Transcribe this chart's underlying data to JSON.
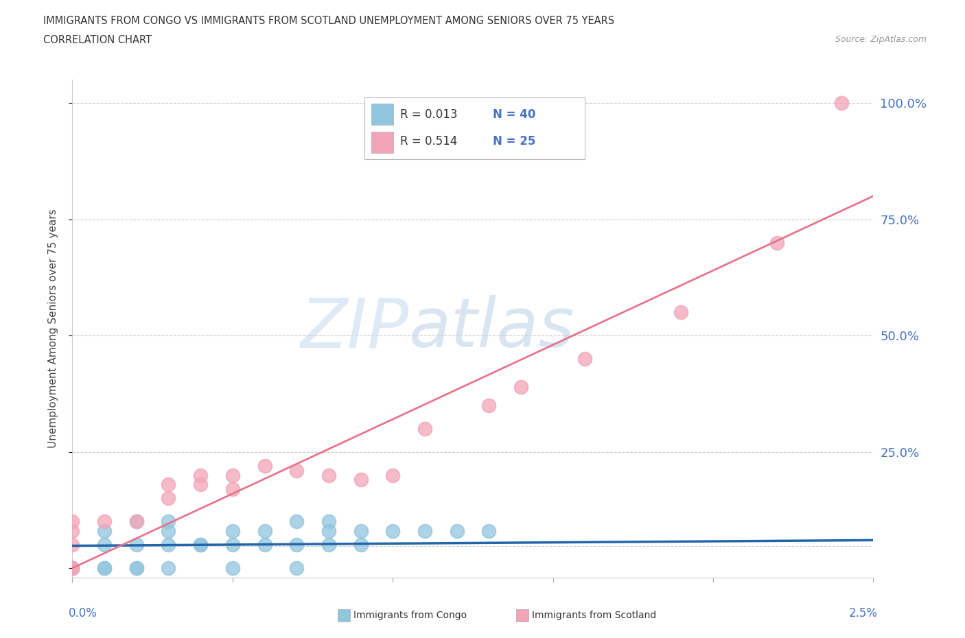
{
  "title_line1": "IMMIGRANTS FROM CONGO VS IMMIGRANTS FROM SCOTLAND UNEMPLOYMENT AMONG SENIORS OVER 75 YEARS",
  "title_line2": "CORRELATION CHART",
  "source": "Source: ZipAtlas.com",
  "ylabel": "Unemployment Among Seniors over 75 years",
  "legend_R_congo": "R = 0.013",
  "legend_N_congo": "N = 40",
  "legend_R_scotland": "R = 0.514",
  "legend_N_scotland": "N = 25",
  "congo_color": "#92c5de",
  "scotland_color": "#f4a4b8",
  "congo_line_color": "#2166ac",
  "scotland_line_color": "#e8758a",
  "background_color": "#ffffff",
  "grid_color": "#bbbbbb",
  "right_axis_color": "#4472c4",
  "watermark_color": "#d0dff0",
  "watermark_color2": "#c8d8e8",
  "xlim": [
    0.0,
    0.025
  ],
  "ylim": [
    -0.02,
    1.05
  ],
  "congo_x": [
    0.0,
    0.0,
    0.0,
    0.0,
    0.0,
    0.0,
    0.0,
    0.0,
    0.0,
    0.001,
    0.001,
    0.001,
    0.001,
    0.002,
    0.002,
    0.002,
    0.002,
    0.003,
    0.003,
    0.003,
    0.003,
    0.004,
    0.004,
    0.005,
    0.005,
    0.005,
    0.006,
    0.006,
    0.007,
    0.007,
    0.007,
    0.008,
    0.008,
    0.008,
    0.009,
    0.009,
    0.01,
    0.011,
    0.012,
    0.013
  ],
  "congo_y": [
    0.0,
    0.0,
    0.0,
    0.0,
    0.0,
    0.0,
    0.0,
    0.0,
    0.0,
    0.0,
    0.0,
    0.05,
    0.08,
    0.0,
    0.0,
    0.05,
    0.1,
    0.0,
    0.05,
    0.08,
    0.1,
    0.05,
    0.05,
    0.0,
    0.05,
    0.08,
    0.05,
    0.08,
    0.0,
    0.05,
    0.1,
    0.05,
    0.08,
    0.1,
    0.05,
    0.08,
    0.08,
    0.08,
    0.08,
    0.08
  ],
  "scotland_x": [
    0.0,
    0.0,
    0.0,
    0.0,
    0.0,
    0.001,
    0.002,
    0.003,
    0.003,
    0.004,
    0.004,
    0.005,
    0.005,
    0.006,
    0.007,
    0.008,
    0.009,
    0.01,
    0.011,
    0.013,
    0.014,
    0.016,
    0.019,
    0.022,
    0.024
  ],
  "scotland_y": [
    0.0,
    0.0,
    0.05,
    0.08,
    0.1,
    0.1,
    0.1,
    0.15,
    0.18,
    0.18,
    0.2,
    0.2,
    0.17,
    0.22,
    0.21,
    0.2,
    0.19,
    0.2,
    0.3,
    0.35,
    0.39,
    0.45,
    0.55,
    0.7,
    1.0
  ]
}
